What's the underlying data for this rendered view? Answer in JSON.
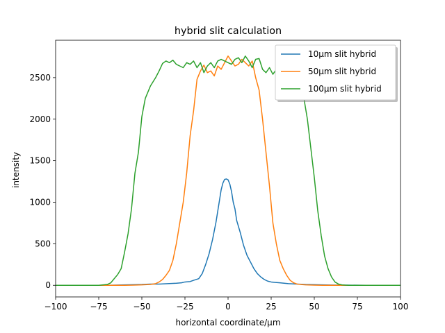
{
  "chart_data": {
    "type": "line",
    "title": "hybrid slit calculation",
    "xlabel": "horizontal coordinate/μm",
    "ylabel": "intensity",
    "xlim": [
      -100,
      100
    ],
    "ylim": [
      -140,
      2950
    ],
    "xticks": [
      -100,
      -75,
      -50,
      -25,
      0,
      25,
      50,
      75,
      100
    ],
    "yticks": [
      0,
      500,
      1000,
      1500,
      2000,
      2500
    ],
    "grid": false,
    "legend_position": "top-right",
    "series": [
      {
        "name": "10μm slit hybrid",
        "color": "#1f77b4",
        "x": [
          -100,
          -90,
          -80,
          -70,
          -60,
          -50,
          -45,
          -40,
          -35,
          -30,
          -27,
          -25,
          -22,
          -20,
          -17,
          -15,
          -13,
          -11,
          -9,
          -7,
          -5,
          -4,
          -3,
          -2,
          -1,
          0,
          1,
          2,
          3,
          4,
          5,
          7,
          9,
          11,
          13,
          15,
          17,
          19,
          21,
          23,
          25,
          27,
          30,
          35,
          40,
          45,
          50,
          55,
          60,
          70,
          80,
          90,
          100
        ],
        "y": [
          0,
          0,
          0,
          0,
          5,
          10,
          15,
          15,
          20,
          25,
          30,
          40,
          45,
          60,
          80,
          140,
          250,
          380,
          550,
          760,
          1020,
          1150,
          1230,
          1275,
          1280,
          1270,
          1220,
          1130,
          1000,
          920,
          780,
          640,
          480,
          360,
          280,
          200,
          140,
          100,
          70,
          50,
          40,
          35,
          30,
          20,
          15,
          10,
          8,
          5,
          3,
          2,
          0,
          0,
          0
        ]
      },
      {
        "name": "50μm slit hybrid",
        "color": "#ff7f0e",
        "x": [
          -100,
          -90,
          -80,
          -70,
          -65,
          -60,
          -55,
          -50,
          -47,
          -45,
          -42,
          -40,
          -38,
          -36,
          -34,
          -32,
          -30,
          -28,
          -26,
          -24,
          -22,
          -20,
          -18,
          -16,
          -14,
          -12,
          -10,
          -8,
          -6,
          -4,
          -2,
          0,
          2,
          4,
          6,
          8,
          10,
          12,
          14,
          16,
          18,
          20,
          22,
          24,
          26,
          28,
          30,
          32,
          34,
          36,
          38,
          40,
          43,
          45,
          50,
          55,
          60,
          70,
          80,
          90,
          100
        ],
        "y": [
          0,
          0,
          0,
          0,
          0,
          0,
          2,
          5,
          8,
          10,
          20,
          40,
          70,
          120,
          180,
          300,
          500,
          750,
          1000,
          1350,
          1800,
          2100,
          2480,
          2580,
          2650,
          2560,
          2580,
          2520,
          2640,
          2600,
          2680,
          2760,
          2700,
          2640,
          2660,
          2720,
          2680,
          2640,
          2700,
          2500,
          2350,
          2000,
          1600,
          1200,
          750,
          500,
          300,
          200,
          120,
          60,
          30,
          15,
          8,
          5,
          2,
          0,
          0,
          0,
          0,
          0,
          0
        ]
      },
      {
        "name": "100μm slit hybrid",
        "color": "#2ca02c",
        "x": [
          -100,
          -90,
          -80,
          -75,
          -70,
          -68,
          -66,
          -64,
          -62,
          -60,
          -58,
          -56,
          -54,
          -52,
          -50,
          -48,
          -45,
          -42,
          -40,
          -38,
          -36,
          -34,
          -32,
          -30,
          -28,
          -26,
          -24,
          -22,
          -20,
          -18,
          -16,
          -14,
          -12,
          -10,
          -8,
          -6,
          -4,
          -2,
          0,
          2,
          4,
          6,
          8,
          10,
          12,
          14,
          16,
          18,
          20,
          22,
          24,
          26,
          28,
          30,
          32,
          34,
          36,
          38,
          40,
          42,
          44,
          46,
          48,
          50,
          52,
          54,
          56,
          58,
          60,
          62,
          64,
          66,
          68,
          70,
          75,
          80,
          90,
          100
        ],
        "y": [
          0,
          0,
          0,
          0,
          10,
          30,
          80,
          130,
          200,
          400,
          620,
          920,
          1350,
          1600,
          2030,
          2250,
          2400,
          2500,
          2580,
          2670,
          2700,
          2680,
          2710,
          2660,
          2640,
          2620,
          2680,
          2660,
          2700,
          2620,
          2680,
          2560,
          2640,
          2680,
          2620,
          2700,
          2720,
          2700,
          2680,
          2660,
          2720,
          2740,
          2680,
          2760,
          2700,
          2620,
          2720,
          2730,
          2600,
          2560,
          2620,
          2540,
          2600,
          2480,
          2650,
          2450,
          2600,
          2480,
          2500,
          2400,
          2250,
          2000,
          1650,
          1300,
          900,
          600,
          350,
          200,
          100,
          40,
          15,
          5,
          2,
          0,
          0,
          0,
          0,
          0
        ]
      }
    ]
  }
}
